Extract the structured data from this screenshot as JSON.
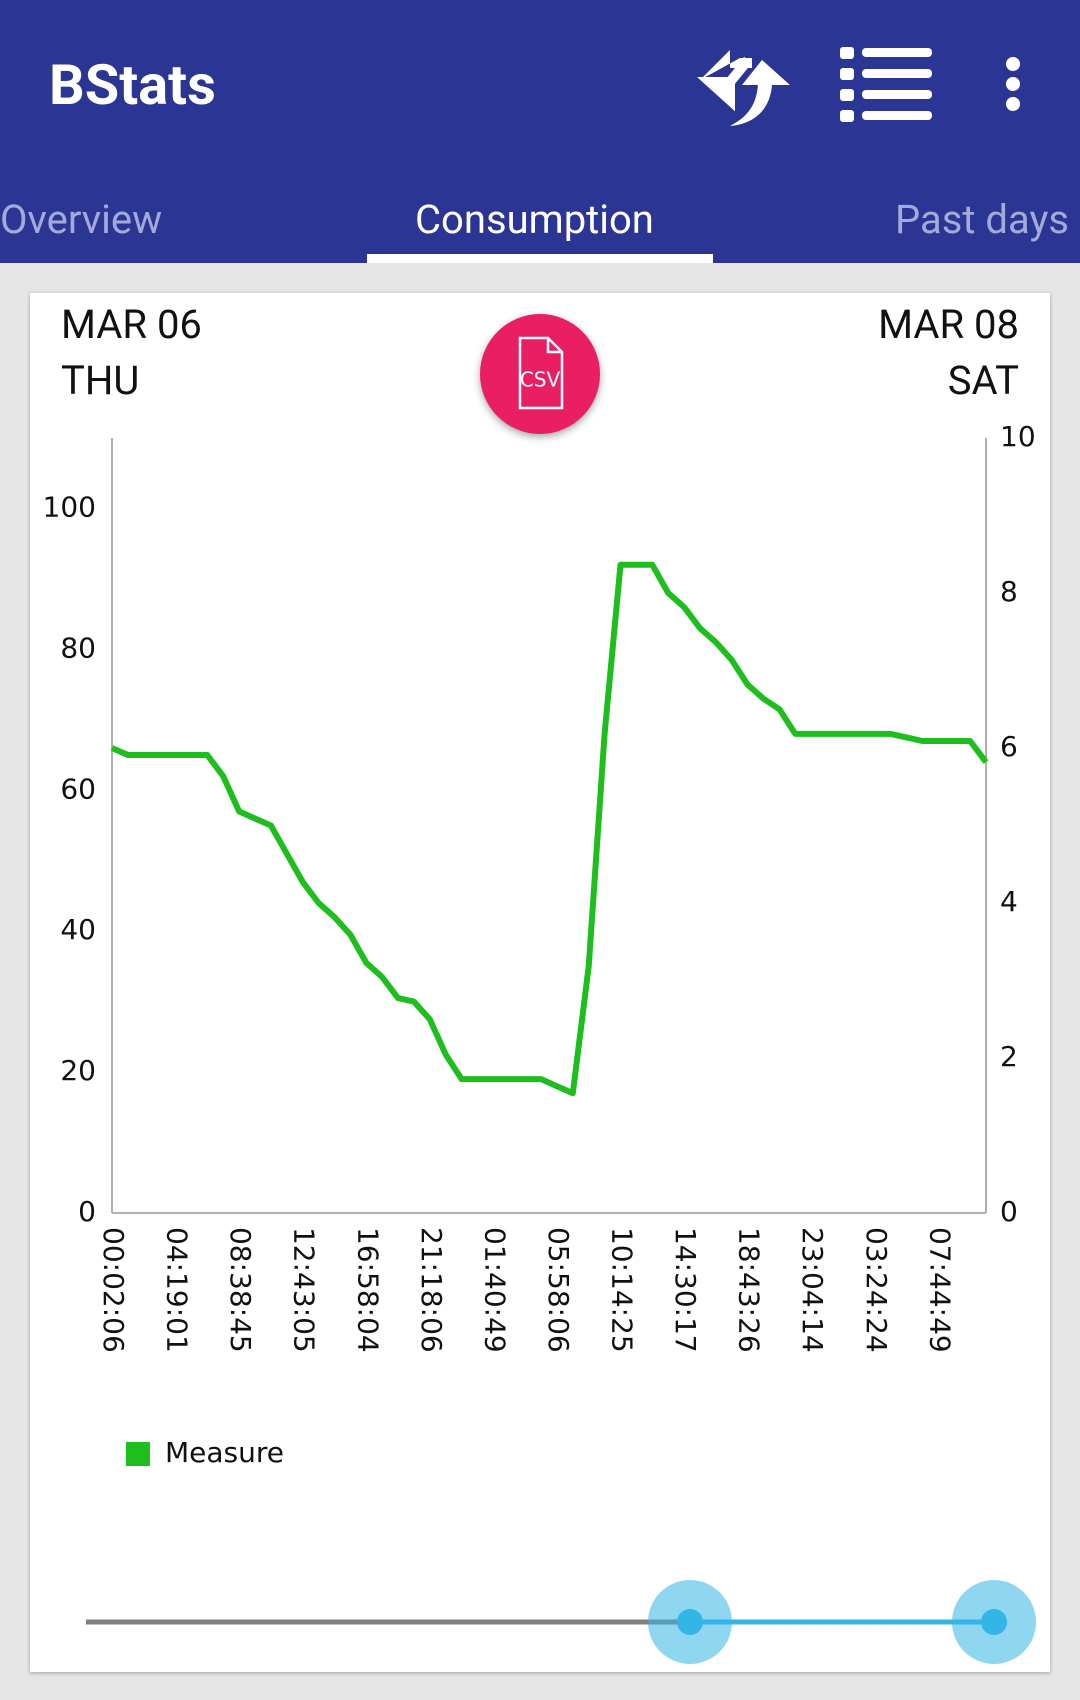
{
  "app_bar": {
    "title": "BStats"
  },
  "tabs": [
    "Overview",
    "Consumption",
    "Past days"
  ],
  "date_range": {
    "start_date": "MAR 06",
    "start_day": "THU",
    "end_date": "MAR 08",
    "end_day": "SAT"
  },
  "csv_button": "CSV",
  "chart_data": {
    "type": "line",
    "categories": [
      "00:02:06",
      null,
      null,
      null,
      "04:19:01",
      null,
      null,
      null,
      "08:38:45",
      null,
      null,
      null,
      "12:43:05",
      null,
      null,
      null,
      "16:58:04",
      null,
      null,
      null,
      "21:18:06",
      null,
      null,
      null,
      "01:40:49",
      null,
      null,
      null,
      "05:58:06",
      null,
      null,
      null,
      "10:14:25",
      null,
      null,
      null,
      "14:30:17",
      null,
      null,
      null,
      "18:43:26",
      null,
      null,
      null,
      "23:04:14",
      null,
      null,
      null,
      "03:24:24",
      null,
      null,
      null,
      "07:44:49",
      null,
      null,
      null
    ],
    "series": [
      {
        "name": "Measure",
        "color": "#1ebe1e",
        "values": [
          66,
          65,
          65,
          65,
          65,
          65,
          65,
          62,
          57,
          56,
          55,
          51,
          47,
          44,
          42,
          39.5,
          35.5,
          33.5,
          30.5,
          30,
          27.5,
          22.5,
          19,
          19,
          19,
          19,
          19,
          19,
          18,
          17,
          35,
          68,
          92,
          92,
          92,
          88,
          86,
          83,
          81,
          78.5,
          75,
          73,
          71.5,
          68,
          68,
          68,
          68,
          68,
          68,
          68,
          67.5,
          67,
          67,
          67,
          67,
          64
        ]
      }
    ],
    "ylim": [
      0,
      110
    ],
    "yticks": [
      0,
      20,
      40,
      60,
      80,
      100
    ],
    "y2lim": [
      0,
      10
    ],
    "y2ticks": [
      0,
      2,
      4,
      6,
      8,
      10
    ],
    "grid": false,
    "legend": "bottom-left"
  }
}
